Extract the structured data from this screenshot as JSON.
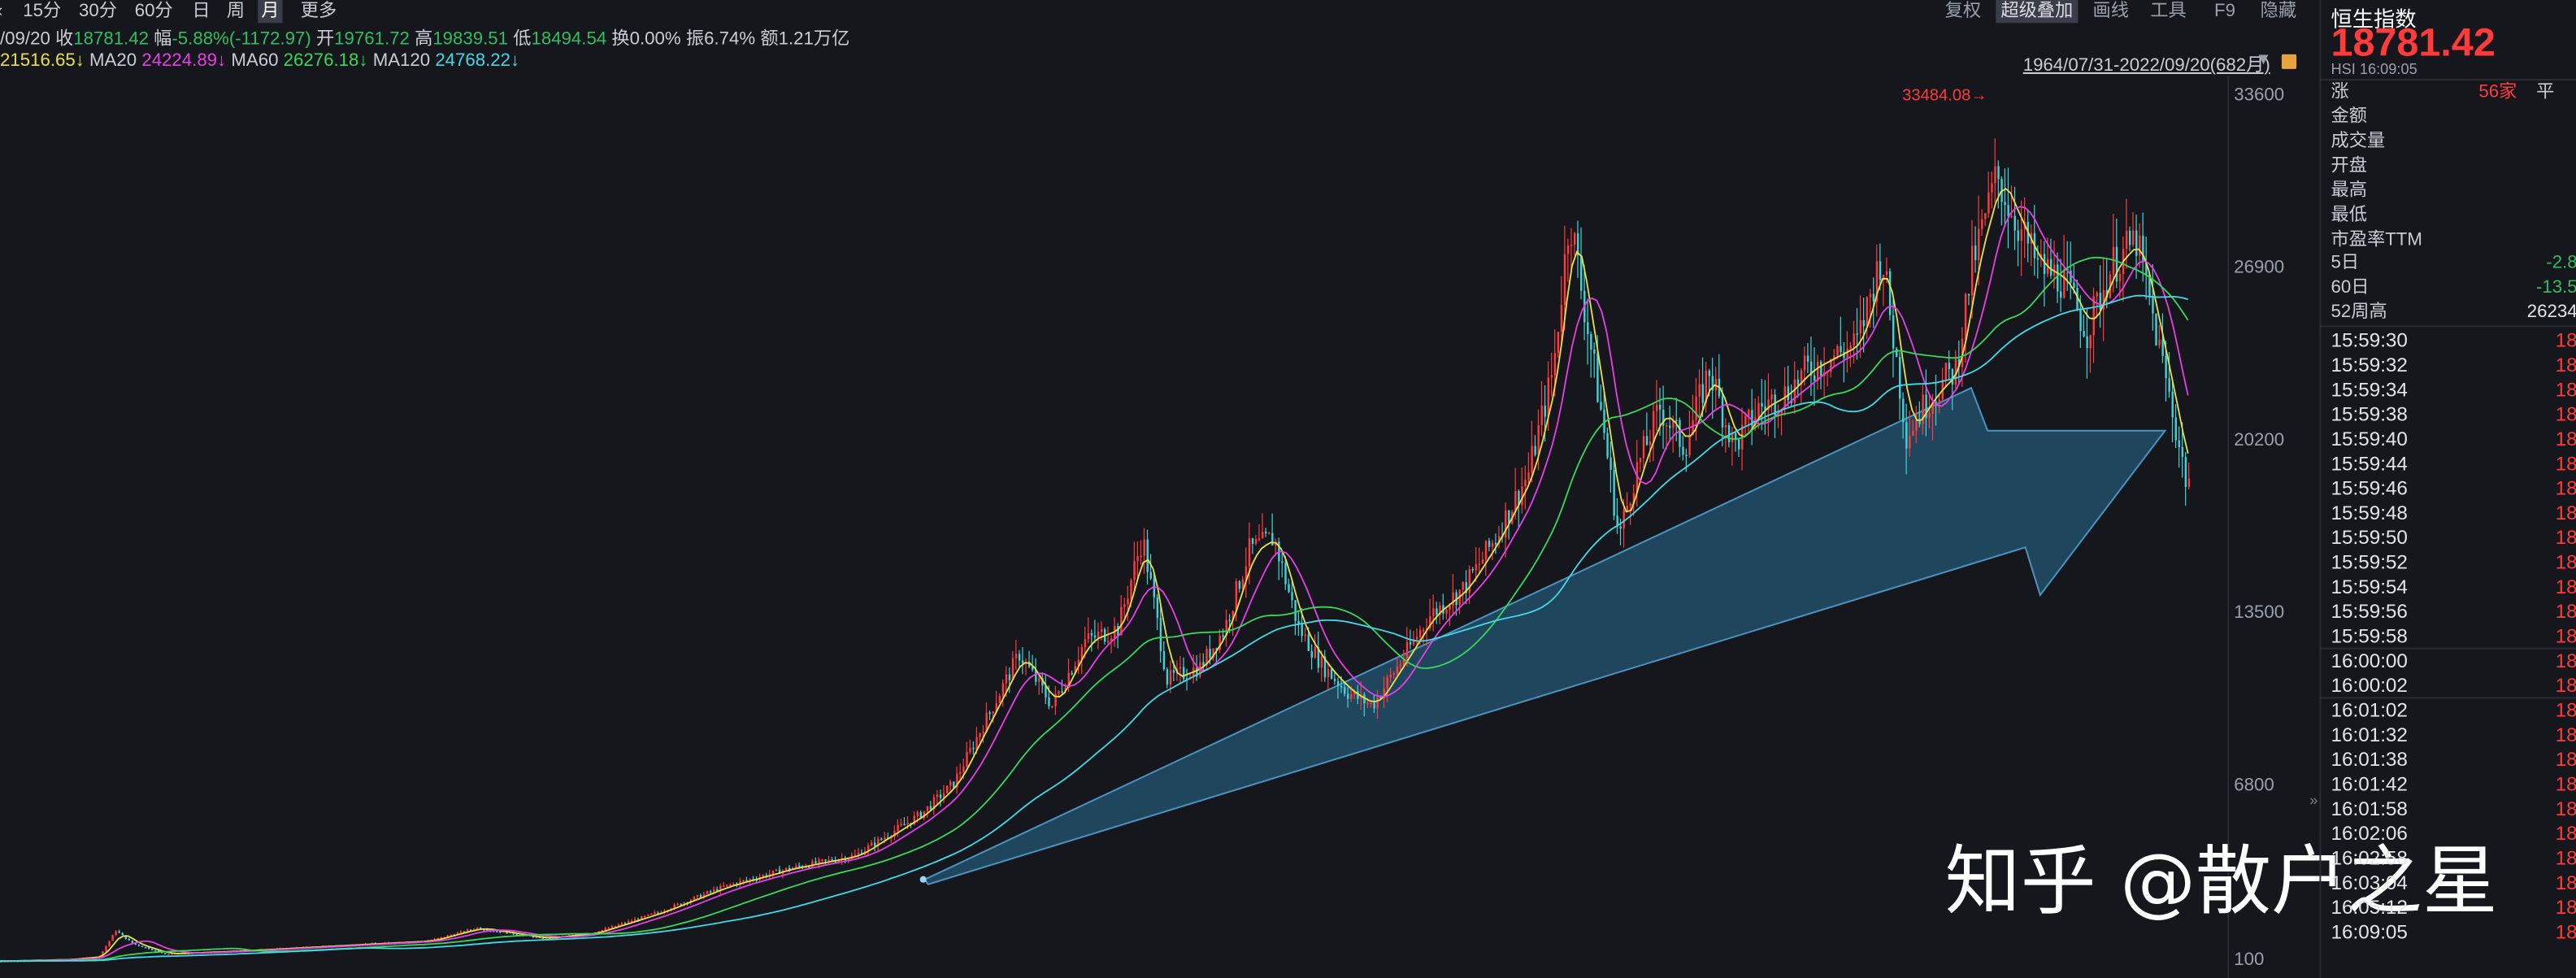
{
  "toolbar": {
    "left_items": [
      "15分",
      "30分",
      "60分",
      "日",
      "周",
      "月",
      "更多"
    ],
    "active_left": "月",
    "right_items": [
      "复权",
      "超级叠加",
      "画线",
      "工具",
      "F9",
      "隐藏"
    ],
    "active_right": "超级叠加"
  },
  "quote": {
    "date": "/09/20",
    "close_label": "收",
    "close": "18781.42",
    "amp_label": "幅",
    "change": "-5.88%(-1172.97)",
    "open_label": "开",
    "open": "19761.72",
    "high_label": "高",
    "high": "19839.51",
    "low_label": "低",
    "low": "18494.54",
    "turnover": "换0.00%",
    "amplitude": "振6.74%",
    "amount": "额1.21万亿"
  },
  "ma": {
    "ma10_value": "21516.65↓",
    "ma20_label": "MA20",
    "ma20_value": "24224.89↓",
    "ma60_label": "MA60",
    "ma60_value": "26276.18↓",
    "ma120_label": "MA120",
    "ma120_value": "24768.22↓"
  },
  "range": "1964/07/31-2022/09/20(682月)",
  "max_label": "33484.08→",
  "yaxis_ticks": [
    "33600",
    "26900",
    "20200",
    "13500",
    "6800",
    "100"
  ],
  "watermark": "知乎 @散户之星",
  "colors": {
    "up": "#ff3b3b",
    "down": "#2fbf60",
    "ma_yellow": "#e8e04a",
    "ma_magenta": "#e540e5",
    "ma_green": "#3ad65a",
    "ma_cyan": "#43d8e6",
    "arrow": "#2a6d96"
  },
  "panel": {
    "title": "恒生指数",
    "price": "18781.42",
    "code": "HSI  16:09:05",
    "rise_label": "涨",
    "rise_count": "56家",
    "flat_label": "平",
    "fields": [
      "金额",
      "成交量",
      "开盘",
      "最高",
      "最低",
      "市盈率TTM"
    ],
    "perf": [
      {
        "label": "5日",
        "value": "-2.8"
      },
      {
        "label": "60日",
        "value": "-13.5"
      },
      {
        "label": "52周高",
        "value": "26234"
      }
    ],
    "ticks": [
      {
        "time": "15:59:30",
        "value": "18"
      },
      {
        "time": "15:59:32",
        "value": "18"
      },
      {
        "time": "15:59:34",
        "value": "18"
      },
      {
        "time": "15:59:38",
        "value": "18"
      },
      {
        "time": "15:59:40",
        "value": "18"
      },
      {
        "time": "15:59:44",
        "value": "18"
      },
      {
        "time": "15:59:46",
        "value": "18"
      },
      {
        "time": "15:59:48",
        "value": "18"
      },
      {
        "time": "15:59:50",
        "value": "18"
      },
      {
        "time": "15:59:52",
        "value": "18"
      },
      {
        "time": "15:59:54",
        "value": "18"
      },
      {
        "time": "15:59:56",
        "value": "18"
      },
      {
        "time": "15:59:58",
        "value": "18"
      },
      {
        "time": "16:00:00",
        "value": "18"
      },
      {
        "time": "16:00:02",
        "value": "18"
      },
      {
        "time": "16:01:02",
        "value": "18"
      },
      {
        "time": "16:01:32",
        "value": "18"
      },
      {
        "time": "16:01:38",
        "value": "18"
      },
      {
        "time": "16:01:42",
        "value": "18"
      },
      {
        "time": "16:01:58",
        "value": "18"
      },
      {
        "time": "16:02:06",
        "value": "18"
      },
      {
        "time": "16:02:58",
        "value": "18"
      },
      {
        "time": "16:03:04",
        "value": "18"
      },
      {
        "time": "16:05:12",
        "value": "18"
      },
      {
        "time": "16:09:05",
        "value": "18"
      }
    ]
  },
  "chart_data": {
    "type": "candlestick",
    "period": "monthly",
    "ylim": [
      100,
      33600
    ],
    "close_points": [
      [
        0,
        120
      ],
      [
        40,
        180
      ],
      [
        60,
        300
      ],
      [
        70,
        1300
      ],
      [
        80,
        800
      ],
      [
        100,
        400
      ],
      [
        140,
        500
      ],
      [
        200,
        700
      ],
      [
        260,
        900
      ],
      [
        290,
        1400
      ],
      [
        330,
        1000
      ],
      [
        360,
        1200
      ],
      [
        400,
        2000
      ],
      [
        440,
        3000
      ],
      [
        480,
        3700
      ],
      [
        520,
        4200
      ],
      [
        560,
        5800
      ],
      [
        580,
        7000
      ],
      [
        600,
        9500
      ],
      [
        620,
        12000
      ],
      [
        640,
        10000
      ],
      [
        660,
        12500
      ],
      [
        680,
        13000
      ],
      [
        695,
        16500
      ],
      [
        710,
        11000
      ],
      [
        730,
        11500
      ],
      [
        745,
        13000
      ],
      [
        760,
        16000
      ],
      [
        775,
        16500
      ],
      [
        790,
        13000
      ],
      [
        805,
        11500
      ],
      [
        820,
        10500
      ],
      [
        835,
        10000
      ],
      [
        850,
        11500
      ],
      [
        870,
        13500
      ],
      [
        890,
        14500
      ],
      [
        910,
        16500
      ],
      [
        930,
        19000
      ],
      [
        945,
        23000
      ],
      [
        955,
        29000
      ],
      [
        965,
        25000
      ],
      [
        975,
        21000
      ],
      [
        985,
        16500
      ],
      [
        995,
        19000
      ],
      [
        1010,
        21500
      ],
      [
        1025,
        20000
      ],
      [
        1040,
        23000
      ],
      [
        1055,
        20000
      ],
      [
        1070,
        21500
      ],
      [
        1085,
        22000
      ],
      [
        1100,
        23000
      ],
      [
        1115,
        23500
      ],
      [
        1130,
        24000
      ],
      [
        1145,
        27500
      ],
      [
        1160,
        20500
      ],
      [
        1175,
        22000
      ],
      [
        1190,
        23000
      ],
      [
        1200,
        27000
      ],
      [
        1215,
        30500
      ],
      [
        1225,
        29000
      ],
      [
        1240,
        27000
      ],
      [
        1255,
        26500
      ],
      [
        1270,
        24500
      ],
      [
        1285,
        27000
      ],
      [
        1300,
        28000
      ],
      [
        1310,
        25000
      ],
      [
        1320,
        22000
      ],
      [
        1330,
        18781
      ]
    ]
  }
}
